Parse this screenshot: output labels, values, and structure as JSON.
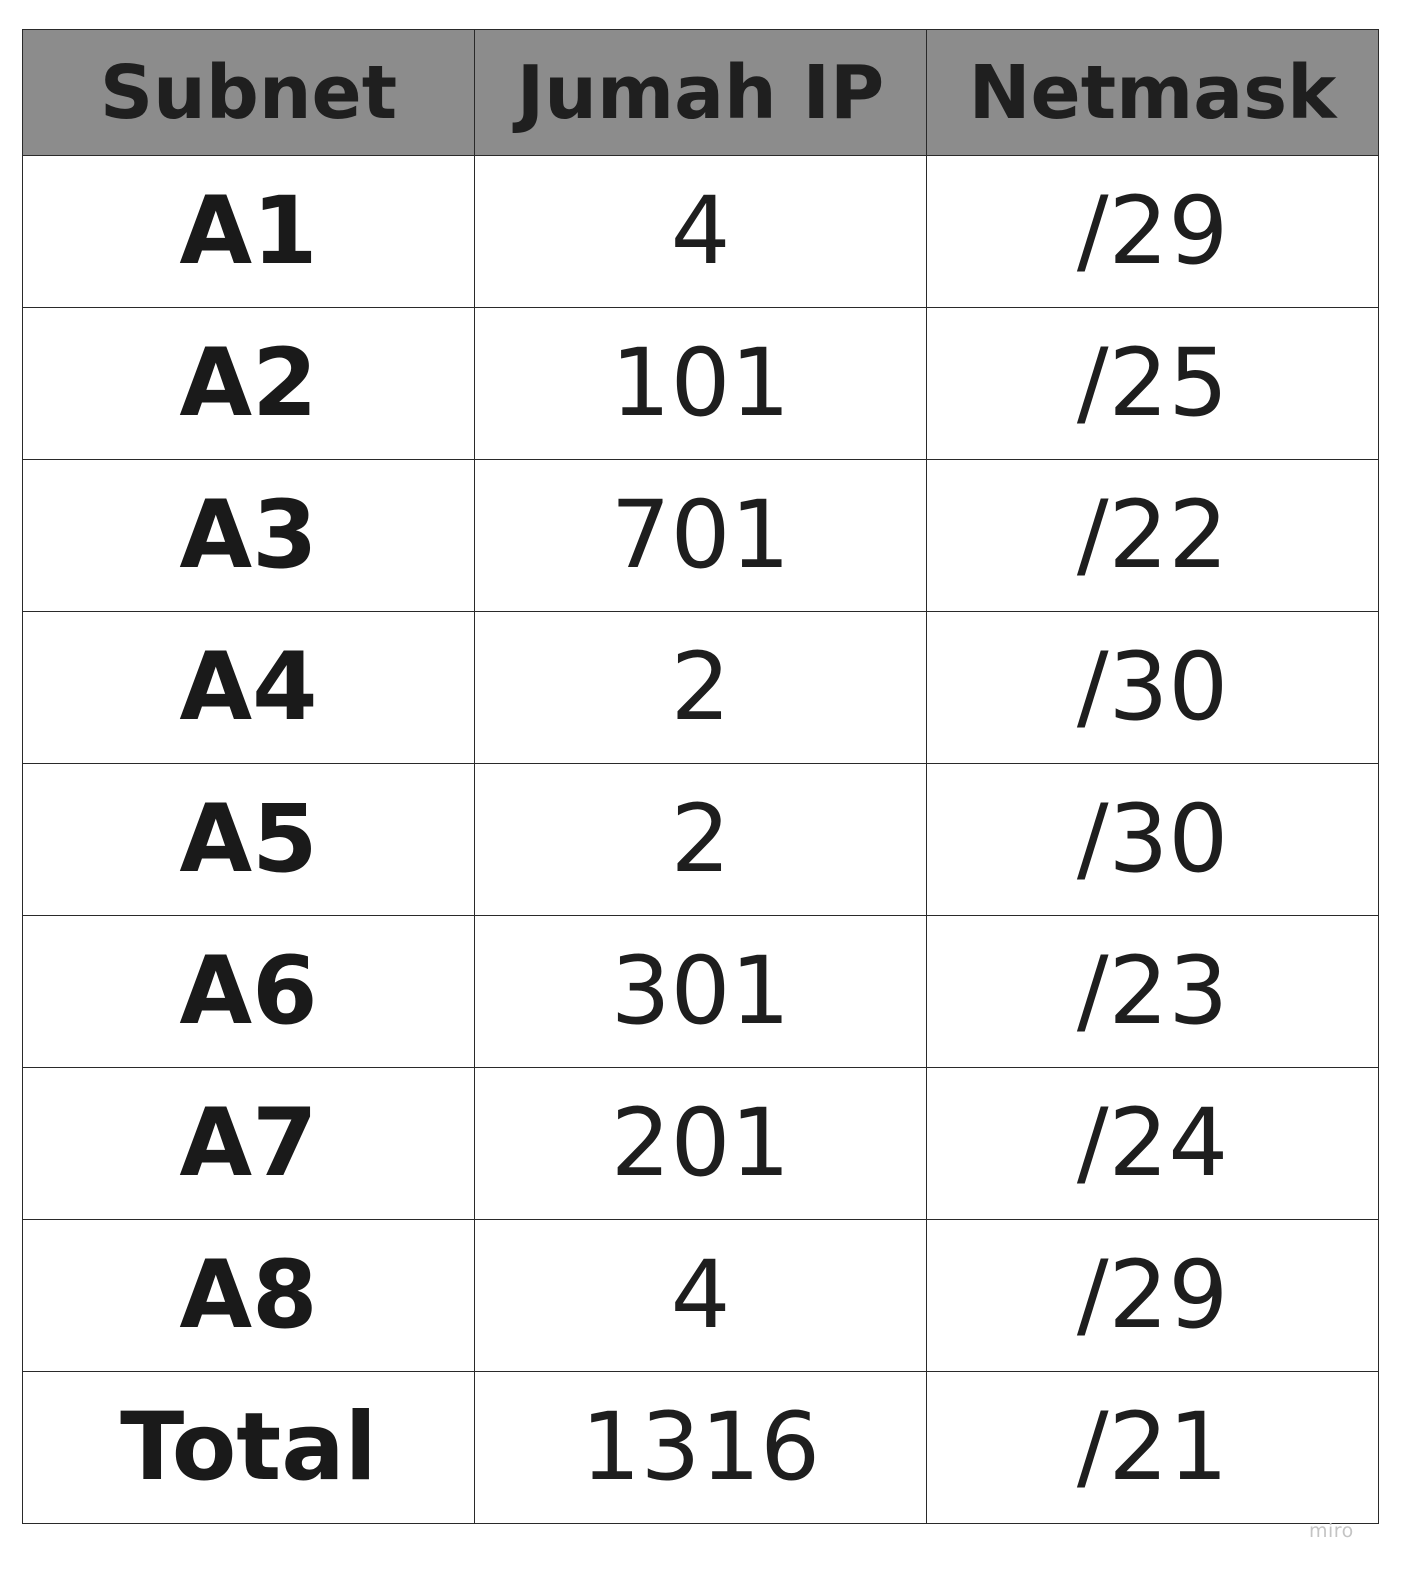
{
  "table": {
    "headers": [
      "Subnet",
      "Jumah IP",
      "Netmask"
    ],
    "rows": [
      {
        "subnet": "A1",
        "ip_count": "4",
        "netmask": "/29"
      },
      {
        "subnet": "A2",
        "ip_count": "101",
        "netmask": "/25"
      },
      {
        "subnet": "A3",
        "ip_count": "701",
        "netmask": "/22"
      },
      {
        "subnet": "A4",
        "ip_count": "2",
        "netmask": "/30"
      },
      {
        "subnet": "A5",
        "ip_count": "2",
        "netmask": "/30"
      },
      {
        "subnet": "A6",
        "ip_count": "301",
        "netmask": "/23"
      },
      {
        "subnet": "A7",
        "ip_count": "201",
        "netmask": "/24"
      },
      {
        "subnet": "A8",
        "ip_count": "4",
        "netmask": "/29"
      },
      {
        "subnet": "Total",
        "ip_count": "1316",
        "netmask": "/21"
      }
    ]
  },
  "watermark": "miro",
  "colors": {
    "header_background": "#8c8c8c",
    "border": "#2a2a2a",
    "text": "#1a1a1a",
    "watermark": "#c4c4c4"
  }
}
